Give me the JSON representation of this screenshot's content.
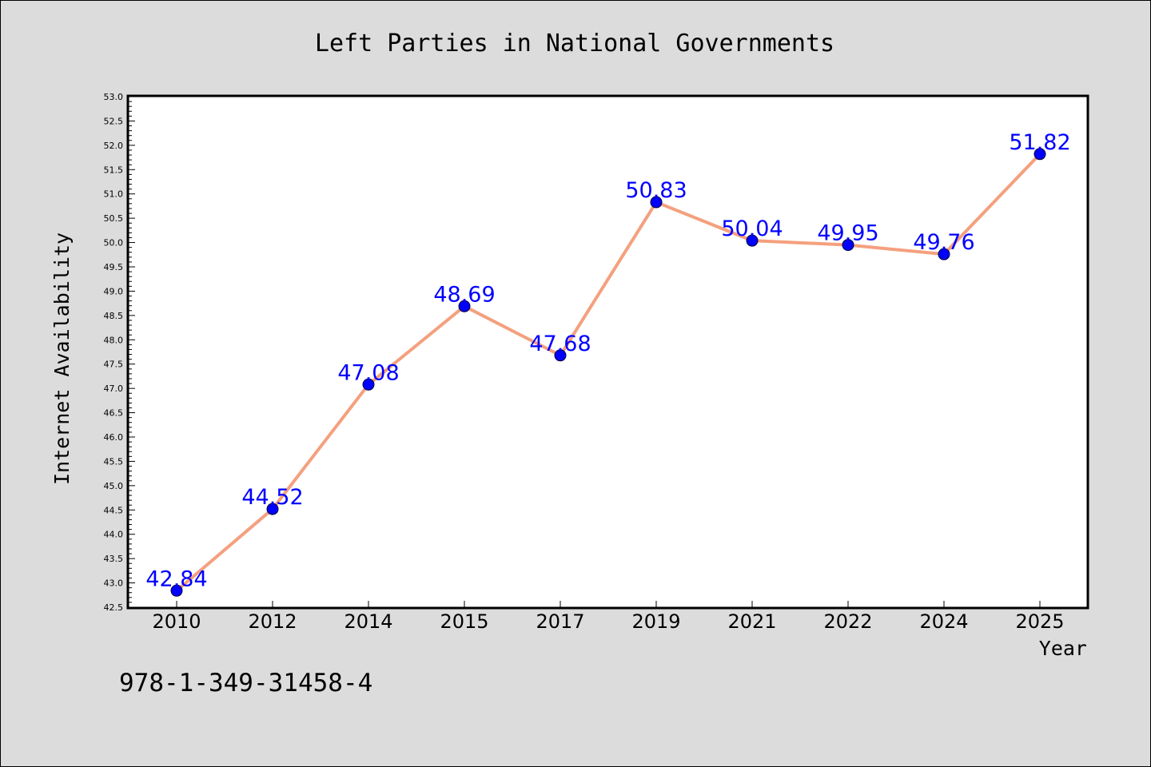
{
  "chart_data": {
    "type": "line",
    "title": "Left Parties in National Governments",
    "xlabel": "Year",
    "ylabel": "Internet Availability",
    "categories": [
      "2010",
      "2012",
      "2014",
      "2015",
      "2017",
      "2019",
      "2021",
      "2022",
      "2024",
      "2025"
    ],
    "values": [
      42.84,
      44.52,
      47.08,
      48.69,
      47.68,
      50.83,
      50.04,
      49.95,
      49.76,
      51.82
    ],
    "data_labels": [
      "42.84",
      "44.52",
      "47.08",
      "48.69",
      "47.68",
      "50.83",
      "50.04",
      "49.95",
      "49.76",
      "51.82"
    ],
    "ylim": [
      42.5,
      53.0
    ],
    "yticks": [
      "42.5",
      "43.0",
      "43.5",
      "44.0",
      "44.5",
      "45.0",
      "45.5",
      "46.0",
      "46.5",
      "47.0",
      "47.5",
      "48.0",
      "48.5",
      "49.0",
      "49.5",
      "50.0",
      "50.5",
      "51.0",
      "51.5",
      "52.0",
      "52.5",
      "53.0"
    ],
    "grid": false,
    "line_color": "#f4a07e",
    "marker_color": "#0000ff",
    "label_color": "#0000ff",
    "background": "#dcdcdc",
    "plot_background": "#ffffff"
  },
  "annotation": "978-1-349-31458-4"
}
